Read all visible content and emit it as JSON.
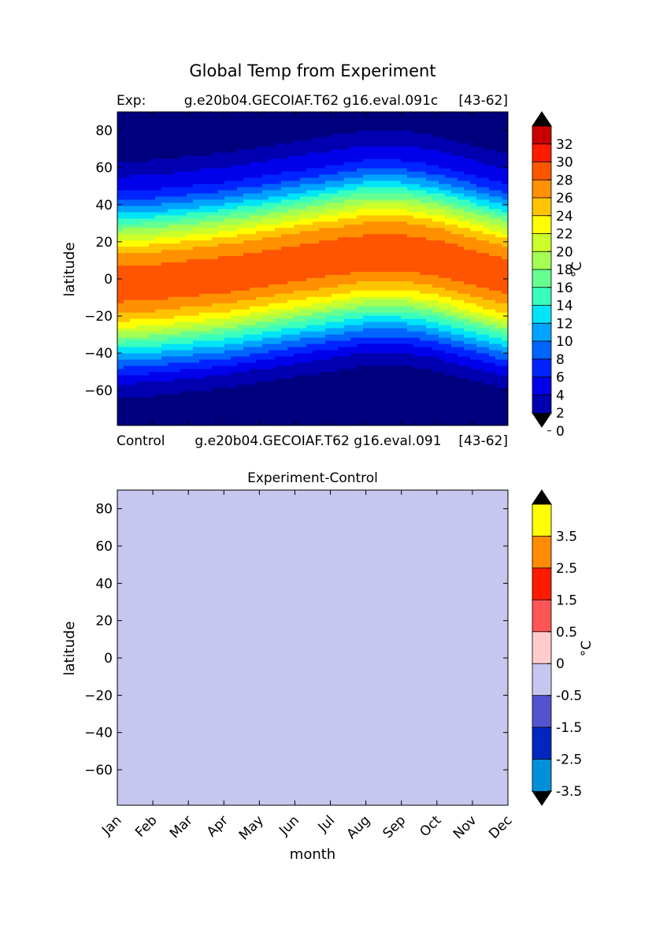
{
  "figure": {
    "title": "Global Temp from Experiment"
  },
  "chart_data": [
    {
      "type": "heatmap",
      "panel": "experiment",
      "left_label": "Exp:",
      "center_label": "g.e20b04.GECOIAF.T62 g16.eval.091c",
      "right_label": "[43-62]",
      "bottom_left_label": "Control",
      "bottom_center_label": "g.e20b04.GECOIAF.T62 g16.eval.091",
      "bottom_right_label": "[43-62]",
      "ylabel": "latitude",
      "ylim": [
        -79,
        90
      ],
      "yticks": [
        80,
        60,
        40,
        20,
        0,
        -20,
        -40,
        -60
      ],
      "x_categories": [
        "Jan",
        "Feb",
        "Mar",
        "Apr",
        "May",
        "Jun",
        "Jul",
        "Aug",
        "Sep",
        "Oct",
        "Nov",
        "Dec"
      ],
      "xlim": [
        0,
        11
      ],
      "contour_levels": [
        -2,
        0,
        2,
        4,
        6,
        8,
        10,
        12,
        14,
        16,
        18,
        20,
        22,
        24,
        26,
        28,
        30,
        32
      ],
      "level_colors": [
        "#00007f",
        "#0000b0",
        "#0000ea",
        "#0024ff",
        "#0064ff",
        "#00a4ff",
        "#00e4f7",
        "#39ffbe",
        "#66ff90",
        "#a4ff53",
        "#ccff2a",
        "#ffff00",
        "#ffc400",
        "#ff9000",
        "#ff5400",
        "#ff1a00",
        "#c80000",
        "#7f0000"
      ],
      "colorbar": {
        "tick_labels": [
          "32",
          "30",
          "28",
          "26",
          "24",
          "22",
          "20",
          "18",
          "16",
          "14",
          "12",
          "10",
          "8",
          "6",
          "4",
          "2",
          "0"
        ],
        "unit_label": "°C",
        "extend": "both"
      },
      "lat_grid": [
        -79,
        -70,
        -60,
        -50,
        -40,
        -30,
        -20,
        -10,
        0,
        10,
        20,
        30,
        40,
        50,
        60,
        70,
        80,
        90
      ],
      "temperature_profile": [
        -1.5,
        -1.2,
        -0.3,
        2.5,
        7.5,
        13.5,
        21.0,
        25.5,
        27.5,
        26.5,
        23.5,
        17.0,
        10.0,
        4.5,
        2.0,
        -0.5,
        -1.0,
        -1.2
      ],
      "monthly_lat_shift": [
        -5,
        -4,
        -2,
        0,
        3,
        6,
        9,
        12,
        12,
        9,
        4,
        -1
      ]
    },
    {
      "type": "heatmap",
      "panel": "difference",
      "title": "Experiment-Control",
      "ylabel": "latitude",
      "xlabel": "month",
      "ylim": [
        -79,
        90
      ],
      "yticks": [
        80,
        60,
        40,
        20,
        0,
        -20,
        -40,
        -60
      ],
      "x_categories": [
        "Jan",
        "Feb",
        "Mar",
        "Apr",
        "May",
        "Jun",
        "Jul",
        "Aug",
        "Sep",
        "Oct",
        "Nov",
        "Dec"
      ],
      "uniform_value": 0,
      "fill_color": "#c6c6ee",
      "contour_levels": [
        -4.5,
        -3.5,
        -2.5,
        -1.5,
        -0.5,
        0,
        0.5,
        1.5,
        2.5,
        3.5,
        4.5
      ],
      "level_colors": [
        "#00ffff",
        "#0090d9",
        "#0028c0",
        "#5353d0",
        "#c6c6ee",
        "#ffcccc",
        "#ff5555",
        "#ff1a00",
        "#ff8c00",
        "#ffff00"
      ],
      "colorbar": {
        "tick_labels": [
          "3.5",
          "2.5",
          "1.5",
          "0.5",
          "0",
          "-0.5",
          "-1.5",
          "-2.5",
          "-3.5"
        ],
        "unit_label": "°C",
        "extend": "both"
      }
    }
  ]
}
